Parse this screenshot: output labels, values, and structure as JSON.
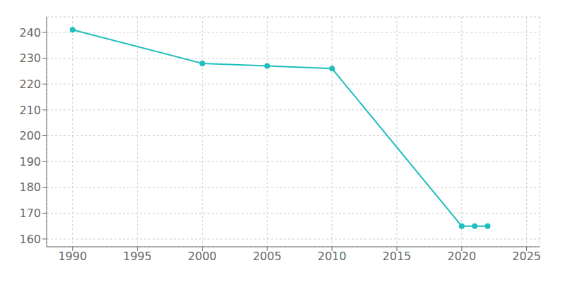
{
  "chart_data": {
    "type": "line",
    "x": [
      1990,
      2000,
      2005,
      2010,
      2020,
      2021,
      2022
    ],
    "values": [
      241,
      228,
      227,
      226,
      165,
      165,
      165
    ],
    "color": "#20BEBE",
    "marker": "circle",
    "xlim": [
      1988,
      2026
    ],
    "ylim": [
      157,
      246
    ],
    "xticks": [
      1990,
      1995,
      2000,
      2005,
      2010,
      2015,
      2020,
      2025
    ],
    "yticks": [
      160,
      170,
      180,
      190,
      200,
      210,
      220,
      230,
      240
    ],
    "grid": true
  }
}
